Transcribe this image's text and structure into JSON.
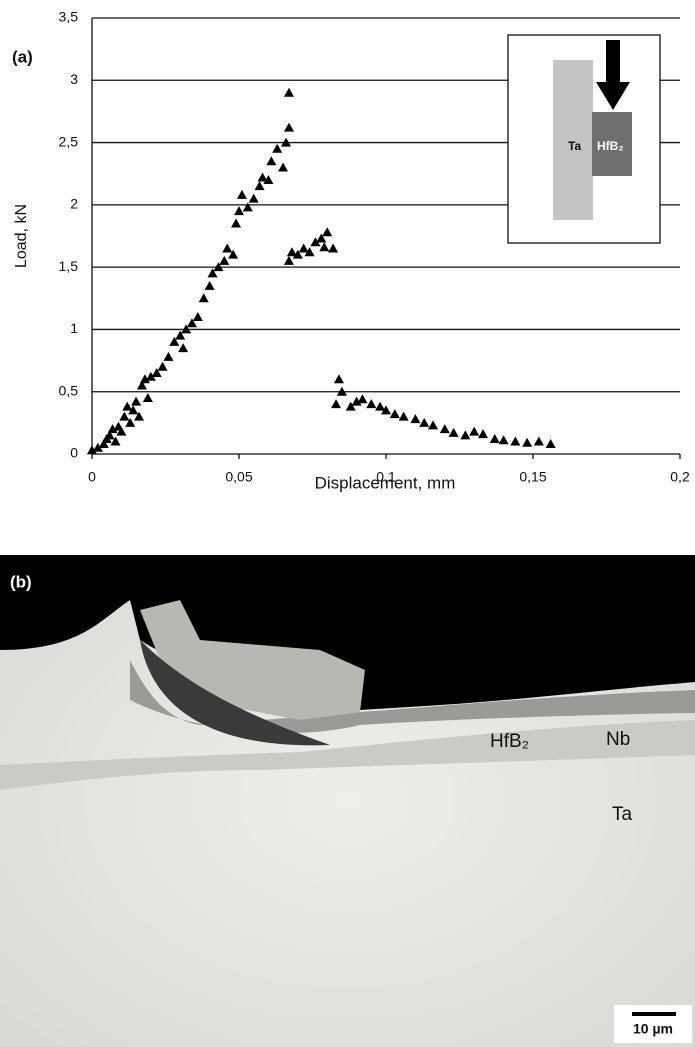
{
  "chart_data": {
    "type": "scatter",
    "panel_label": "(a)",
    "x_label": "Displacement, mm",
    "y_label": "Load, kN",
    "xlim": [
      0,
      0.2
    ],
    "ylim": [
      0,
      3.5
    ],
    "xticks": [
      0,
      {
        "value": 0.05,
        "label": "0,05"
      },
      {
        "value": 0.1,
        "label": "0,1"
      },
      {
        "value": 0.15,
        "label": "0,15"
      },
      {
        "value": 0.2,
        "label": "0,2"
      }
    ],
    "yticks": [
      0,
      {
        "value": 0.5,
        "label": "0,5"
      },
      1,
      {
        "value": 1.5,
        "label": "1,5"
      },
      2,
      {
        "value": 2.5,
        "label": "2,5"
      },
      3,
      {
        "value": 3.5,
        "label": "3,5"
      }
    ],
    "grid": true,
    "marker": "triangle",
    "inset_labels": [
      "Ta",
      "HfB₂"
    ],
    "series": [
      {
        "color": "#000000",
        "x": [
          0,
          0.002,
          0.004,
          0.005,
          0.006,
          0.007,
          0.008,
          0.009,
          0.01,
          0.011,
          0.012,
          0.013,
          0.014,
          0.015,
          0.016,
          0.017,
          0.018,
          0.019,
          0.02,
          0.022,
          0.024,
          0.026,
          0.028,
          0.03,
          0.031,
          0.032,
          0.034,
          0.036,
          0.038,
          0.04,
          0.041,
          0.043,
          0.045,
          0.046,
          0.048,
          0.049,
          0.05,
          0.051,
          0.053,
          0.055,
          0.057,
          0.058,
          0.06,
          0.061,
          0.063,
          0.065,
          0.066,
          0.067,
          0.067,
          0.067,
          0.068,
          0.07,
          0.072,
          0.074,
          0.076,
          0.078,
          0.079,
          0.08,
          0.082,
          0.083,
          0.084,
          0.085,
          0.088,
          0.09,
          0.092,
          0.095,
          0.098,
          0.1,
          0.103,
          0.106,
          0.11,
          0.113,
          0.116,
          0.12,
          0.123,
          0.127,
          0.13,
          0.133,
          0.137,
          0.14,
          0.144,
          0.148,
          0.152,
          0.156
        ],
        "values": [
          0.03,
          0.05,
          0.08,
          0.12,
          0.15,
          0.2,
          0.1,
          0.22,
          0.18,
          0.3,
          0.38,
          0.25,
          0.35,
          0.42,
          0.3,
          0.55,
          0.6,
          0.45,
          0.62,
          0.65,
          0.7,
          0.78,
          0.9,
          0.95,
          0.85,
          1.0,
          1.05,
          1.1,
          1.25,
          1.35,
          1.45,
          1.5,
          1.55,
          1.65,
          1.6,
          1.85,
          1.95,
          2.08,
          1.98,
          2.05,
          2.15,
          2.22,
          2.2,
          2.35,
          2.45,
          2.3,
          2.5,
          2.62,
          2.9,
          1.55,
          1.62,
          1.6,
          1.65,
          1.62,
          1.7,
          1.73,
          1.66,
          1.78,
          1.65,
          0.4,
          0.6,
          0.5,
          0.38,
          0.42,
          0.44,
          0.4,
          0.38,
          0.35,
          0.32,
          0.3,
          0.28,
          0.25,
          0.23,
          0.2,
          0.17,
          0.15,
          0.18,
          0.16,
          0.12,
          0.11,
          0.1,
          0.09,
          0.1,
          0.08
        ]
      }
    ]
  },
  "micrograph": {
    "panel_label": "(b)",
    "labels": [
      "HfB₂",
      "Nb",
      "Ta"
    ],
    "scale_bar": "10 µm"
  }
}
